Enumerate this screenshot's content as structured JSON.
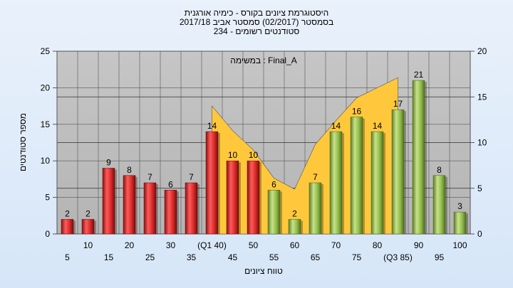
{
  "header": {
    "title_line1": "היסטוגרמת ציונים בקורס - כימיה אורגנית",
    "title_line2": "בסמסטר  (02/2017)  סמסטר אביב 2017/18",
    "title_line3": "סטודנטים רשומים - 234"
  },
  "annotation": "במשימה : Final_A",
  "colors": {
    "fail_bar": "#d42a2a",
    "pass_bar": "#8fba48",
    "area": "#ffc83c",
    "plot_bg": "#bebebe"
  },
  "chart_data": {
    "type": "bar",
    "ylabel": "מספר סטודנטים",
    "xlabel": "טווח ציונים",
    "ylim": [
      0,
      25
    ],
    "y2lim": [
      0,
      20
    ],
    "y_ticks": [
      0,
      5,
      10,
      15,
      20,
      25
    ],
    "y2_ticks": [
      0,
      5,
      10,
      15,
      20
    ],
    "grid": true,
    "categories": [
      "5",
      "10",
      "15",
      "20",
      "25",
      "30",
      "35",
      "(Q1 40)",
      "45",
      "50",
      "55",
      "60",
      "65",
      "70",
      "75",
      "80",
      "(Q3 85)",
      "90",
      "95",
      "100"
    ],
    "values": [
      2,
      2,
      9,
      8,
      7,
      6,
      7,
      14,
      10,
      10,
      6,
      2,
      7,
      14,
      16,
      14,
      17,
      21,
      8,
      3
    ],
    "bar_group": [
      "fail",
      "fail",
      "fail",
      "fail",
      "fail",
      "fail",
      "fail",
      "fail",
      "fail",
      "fail",
      "pass",
      "pass",
      "pass",
      "pass",
      "pass",
      "pass",
      "pass",
      "pass",
      "pass",
      "pass"
    ],
    "area_series": {
      "x_start": "(Q1 40)",
      "x_end": "(Q3 85)",
      "values": [
        14,
        11.3,
        9.2,
        6.1,
        4.9,
        9.8,
        12.4,
        14.9,
        16.0,
        17.1
      ]
    }
  }
}
